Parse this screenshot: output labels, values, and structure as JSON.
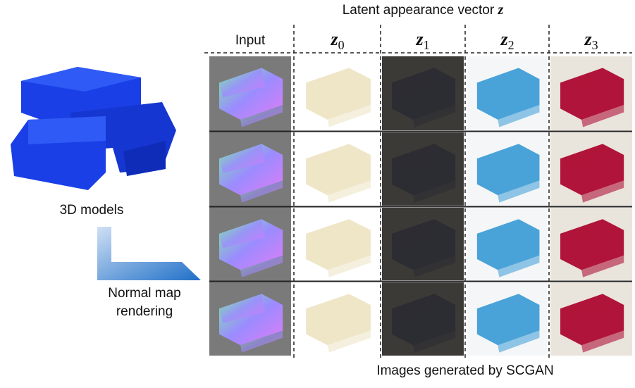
{
  "header": {
    "title": "Latent appearance vector",
    "title_symbol": "z"
  },
  "columns": [
    {
      "label": "Input"
    },
    {
      "symbol": "z",
      "subscript": "0"
    },
    {
      "symbol": "z",
      "subscript": "1"
    },
    {
      "symbol": "z",
      "subscript": "2"
    },
    {
      "symbol": "z",
      "subscript": "3"
    }
  ],
  "left": {
    "models_label": "3D models",
    "rendering_label": [
      "Normal map",
      "rendering"
    ]
  },
  "footer": {
    "caption": "Images generated by SCGAN"
  }
}
